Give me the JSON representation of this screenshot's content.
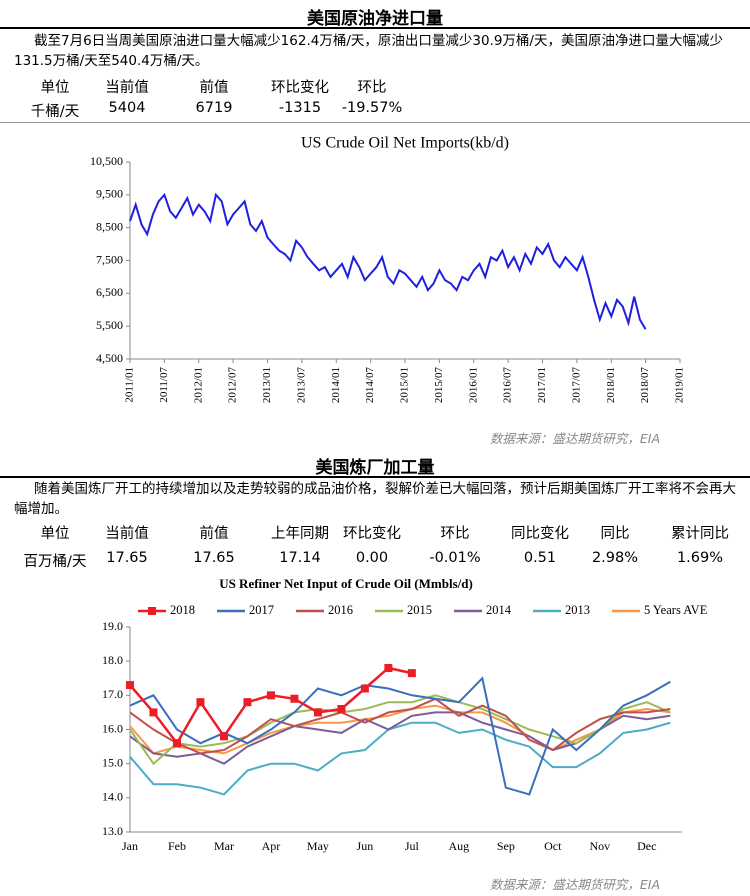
{
  "sections": [
    {
      "title": "美国原油净进口量",
      "text": "截至7月6日当周美国原油进口量大幅减少162.4万桶/天，原油出口量减少30.9万桶/天，美国原油净进口量大幅减少131.5万桶/天至540.4万桶/天。",
      "table": {
        "headers": [
          "单位",
          "当前值",
          "前值",
          "环比变化",
          "环比"
        ],
        "rows": [
          [
            "千桶/天",
            "5404",
            "6719",
            "-1315",
            "-19.57%"
          ]
        ]
      },
      "source": "数据来源：盛达期货研究，EIA"
    },
    {
      "title": "美国炼厂加工量",
      "text": "随着美国炼厂开工的持续增加以及走势较弱的成品油价格，裂解价差已大幅回落，预计后期美国炼厂开工率将不会再大幅增加。",
      "table": {
        "headers": [
          "单位",
          "当前值",
          "前值",
          "上年同期",
          "环比变化",
          "环比",
          "同比变化",
          "同比",
          "累计同比"
        ],
        "rows": [
          [
            "百万桶/天",
            "17.65",
            "17.65",
            "17.14",
            "0.00",
            "-0.01%",
            "0.51",
            "2.98%",
            "1.69%"
          ]
        ]
      },
      "source": "数据来源：盛达期货研究，EIA"
    }
  ],
  "chart_data": [
    {
      "type": "line",
      "title": "US Crude Oil Net Imports(kb/d)",
      "color": "#1f1fe0",
      "x": [
        "2011/01",
        "2011/02",
        "2011/03",
        "2011/04",
        "2011/05",
        "2011/06",
        "2011/07",
        "2011/08",
        "2011/09",
        "2011/10",
        "2011/11",
        "2011/12",
        "2012/01",
        "2012/02",
        "2012/03",
        "2012/04",
        "2012/05",
        "2012/06",
        "2012/07",
        "2012/08",
        "2012/09",
        "2012/10",
        "2012/11",
        "2012/12",
        "2013/01",
        "2013/02",
        "2013/03",
        "2013/04",
        "2013/05",
        "2013/06",
        "2013/07",
        "2013/08",
        "2013/09",
        "2013/10",
        "2013/11",
        "2013/12",
        "2014/01",
        "2014/02",
        "2014/03",
        "2014/04",
        "2014/05",
        "2014/06",
        "2014/07",
        "2014/08",
        "2014/09",
        "2014/10",
        "2014/11",
        "2014/12",
        "2015/01",
        "2015/02",
        "2015/03",
        "2015/04",
        "2015/05",
        "2015/06",
        "2015/07",
        "2015/08",
        "2015/09",
        "2015/10",
        "2015/11",
        "2015/12",
        "2016/01",
        "2016/02",
        "2016/03",
        "2016/04",
        "2016/05",
        "2016/06",
        "2016/07",
        "2016/08",
        "2016/09",
        "2016/10",
        "2016/11",
        "2016/12",
        "2017/01",
        "2017/02",
        "2017/03",
        "2017/04",
        "2017/05",
        "2017/06",
        "2017/07",
        "2017/08",
        "2017/09",
        "2017/10",
        "2017/11",
        "2017/12",
        "2018/01",
        "2018/02",
        "2018/03",
        "2018/04",
        "2018/05",
        "2018/06",
        "2018/07"
      ],
      "values": [
        8700,
        9200,
        8600,
        8300,
        8900,
        9300,
        9500,
        9000,
        8800,
        9100,
        9400,
        8900,
        9200,
        9000,
        8700,
        9500,
        9300,
        8600,
        8900,
        9100,
        9300,
        8600,
        8400,
        8700,
        8200,
        8000,
        7800,
        7700,
        7500,
        8100,
        7900,
        7600,
        7400,
        7200,
        7300,
        7000,
        7200,
        7400,
        7000,
        7600,
        7300,
        6900,
        7100,
        7300,
        7600,
        7000,
        6800,
        7200,
        7100,
        6900,
        6700,
        7000,
        6600,
        6800,
        7200,
        6900,
        6800,
        6600,
        7000,
        6900,
        7200,
        7400,
        7000,
        7600,
        7500,
        7800,
        7300,
        7600,
        7200,
        7700,
        7400,
        7900,
        7700,
        8000,
        7500,
        7300,
        7600,
        7400,
        7200,
        7600,
        7000,
        6300,
        5700,
        6200,
        5800,
        6300,
        6100,
        5600,
        6400,
        5700,
        5404
      ],
      "xlim": [
        "2011/01",
        "2019/01"
      ],
      "xticks": [
        "2011/01",
        "2011/07",
        "2012/01",
        "2012/07",
        "2013/01",
        "2013/07",
        "2014/01",
        "2014/07",
        "2015/01",
        "2015/07",
        "2016/01",
        "2016/07",
        "2017/01",
        "2017/07",
        "2018/01",
        "2018/07",
        "2019/01"
      ],
      "ylim": [
        4500,
        10500
      ],
      "yticks": [
        {
          "value": 4500,
          "label": "4,500"
        },
        {
          "value": 5500,
          "label": "5,500"
        },
        {
          "value": 6500,
          "label": "6,500"
        },
        {
          "value": 7500,
          "label": "7,500"
        },
        {
          "value": 8500,
          "label": "8,500"
        },
        {
          "value": 9500,
          "label": "9,500"
        },
        {
          "value": 10500,
          "label": "10,500"
        }
      ]
    },
    {
      "type": "line",
      "title": "US Refiner Net Input of Crude Oil (Mmbls/d)",
      "categories": [
        "Jan",
        null,
        "Feb",
        null,
        "Mar",
        null,
        "Apr",
        null,
        "May",
        null,
        "Jun",
        null,
        "Jul",
        null,
        "Aug",
        null,
        "Sep",
        null,
        "Oct",
        null,
        "Nov",
        null,
        "Dec",
        null
      ],
      "series": [
        {
          "name": "2018",
          "color": "#ee1c25",
          "values": [
            17.3,
            16.5,
            15.6,
            16.8,
            15.8,
            16.8,
            17.0,
            16.9,
            16.5,
            16.6,
            17.2,
            17.8,
            17.65,
            null,
            null,
            null,
            null,
            null,
            null,
            null,
            null,
            null,
            null,
            null
          ]
        },
        {
          "name": "2017",
          "color": "#3a6ebf",
          "values": [
            16.7,
            17.0,
            16.0,
            15.6,
            15.9,
            15.6,
            16.0,
            16.5,
            17.2,
            17.0,
            17.3,
            17.2,
            17.0,
            16.9,
            16.8,
            17.5,
            14.3,
            14.1,
            16.0,
            15.4,
            16.0,
            16.7,
            17.0,
            17.4
          ]
        },
        {
          "name": "2016",
          "color": "#c0504d",
          "values": [
            16.5,
            16.0,
            15.6,
            15.3,
            15.4,
            15.8,
            16.3,
            16.1,
            16.3,
            16.5,
            16.2,
            16.5,
            16.6,
            16.9,
            16.4,
            16.7,
            16.4,
            15.7,
            15.4,
            15.9,
            16.3,
            16.5,
            16.5,
            16.6
          ]
        },
        {
          "name": "2015",
          "color": "#9bbb59",
          "values": [
            16.0,
            15.0,
            15.6,
            15.5,
            15.6,
            15.8,
            16.2,
            16.5,
            16.6,
            16.5,
            16.6,
            16.8,
            16.8,
            17.0,
            16.8,
            16.6,
            16.3,
            16.0,
            15.8,
            15.6,
            16.0,
            16.6,
            16.8,
            16.5
          ]
        },
        {
          "name": "2014",
          "color": "#7d5c9a",
          "values": [
            15.8,
            15.3,
            15.2,
            15.3,
            15.0,
            15.5,
            15.8,
            16.1,
            16.0,
            15.9,
            16.3,
            16.0,
            16.4,
            16.5,
            16.5,
            16.2,
            16.0,
            15.8,
            15.4,
            15.6,
            16.0,
            16.4,
            16.3,
            16.4
          ]
        },
        {
          "name": "2013",
          "color": "#4bacc6",
          "values": [
            15.2,
            14.4,
            14.4,
            14.3,
            14.1,
            14.8,
            15.0,
            15.0,
            14.8,
            15.3,
            15.4,
            16.0,
            16.2,
            16.2,
            15.9,
            16.0,
            15.7,
            15.5,
            14.9,
            14.9,
            15.3,
            15.9,
            16.0,
            16.2
          ]
        },
        {
          "name": "5 Years AVE",
          "color": "#f79646",
          "values": [
            16.1,
            15.3,
            15.5,
            15.4,
            15.3,
            15.6,
            15.9,
            16.1,
            16.2,
            16.2,
            16.3,
            16.4,
            16.6,
            16.7,
            16.5,
            16.5,
            16.2,
            15.8,
            15.4,
            15.7,
            16.0,
            16.5,
            16.6,
            16.5
          ]
        }
      ],
      "ylim": [
        13,
        19
      ],
      "yticks": [
        {
          "value": 13,
          "label": "13.0"
        },
        {
          "value": 14,
          "label": "14.0"
        },
        {
          "value": 15,
          "label": "15.0"
        },
        {
          "value": 16,
          "label": "16.0"
        },
        {
          "value": 17,
          "label": "17.0"
        },
        {
          "value": 18,
          "label": "18.0"
        },
        {
          "value": 19,
          "label": "19.0"
        }
      ]
    }
  ]
}
